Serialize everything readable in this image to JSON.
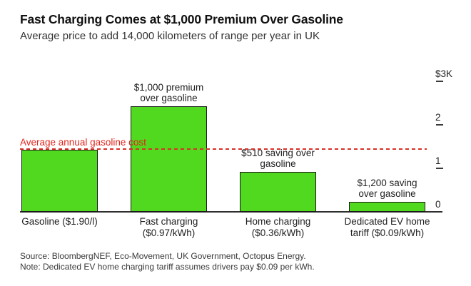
{
  "chart_data": {
    "type": "bar",
    "title": "Fast Charging Comes at $1,000 Premium Over Gasoline",
    "subtitle": "Average price to add 14,000 kilometers of range per year in UK",
    "ids": [
      "gasoline",
      "fast-charging",
      "home-charging",
      "dedicated-ev-home-tariff"
    ],
    "categories": [
      "Gasoline ($1.90/l)",
      "Fast charging\n($0.97/kWh)",
      "Home charging\n($0.36/kWh)",
      "Dedicated EV home\ntariff ($0.09/kWh)"
    ],
    "values": [
      1430,
      2430,
      920,
      230
    ],
    "annotations": [
      "",
      "$1,000 premium\nover gasoline",
      "$510 saving over\ngasoline",
      "$1,200 saving\nover gasoline"
    ],
    "ylim": [
      0,
      3000
    ],
    "yticks": [
      {
        "label": "$3K",
        "value": 3000,
        "dash": true
      },
      {
        "label": "2",
        "value": 2000,
        "dash": true
      },
      {
        "label": "1",
        "value": 1000,
        "dash": true
      },
      {
        "label": "0",
        "value": 0,
        "dash": false
      }
    ],
    "reference_line": {
      "label": "Average annual gasoline cost",
      "value": 1430,
      "color": "#d93025",
      "text_color": "#e0261c",
      "style": "dashed"
    },
    "colors": {
      "bar_fill": "#50d91e",
      "bar_border": "#1a1a1a"
    },
    "grid": false,
    "legend": false,
    "axis_side": "right"
  },
  "footer": {
    "source": "Source: BloombergNEF, Eco-Movement, UK Government, Octopus Energy.",
    "note": "Note: Dedicated EV home charging tariff assumes drivers pay $0.09 per kWh."
  }
}
